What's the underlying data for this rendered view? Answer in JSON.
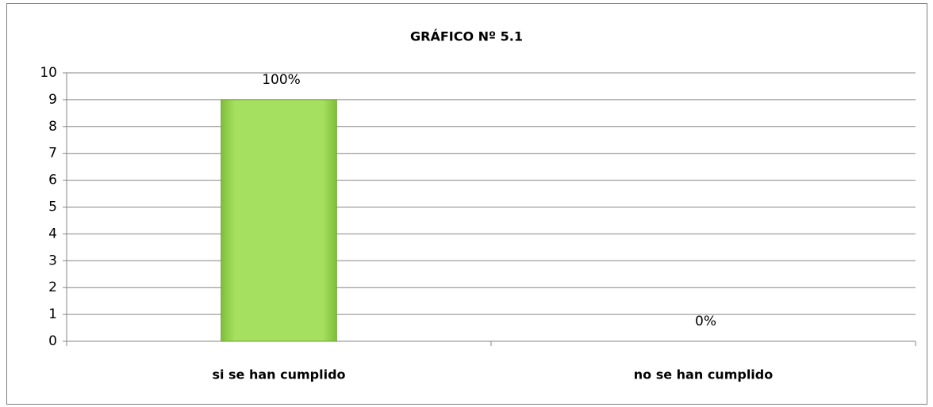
{
  "chart_data": {
    "type": "bar",
    "title": "GRÁFICO Nº 5.1",
    "categories": [
      "si se han cumplido",
      "no se han cumplido"
    ],
    "values": [
      9,
      0
    ],
    "percent_labels": [
      "100%",
      "0%"
    ],
    "color": "#9bdb52",
    "ylim": [
      0,
      10
    ],
    "yticks": [
      0,
      1,
      2,
      3,
      4,
      5,
      6,
      7,
      8,
      9,
      10
    ],
    "grid": true
  }
}
